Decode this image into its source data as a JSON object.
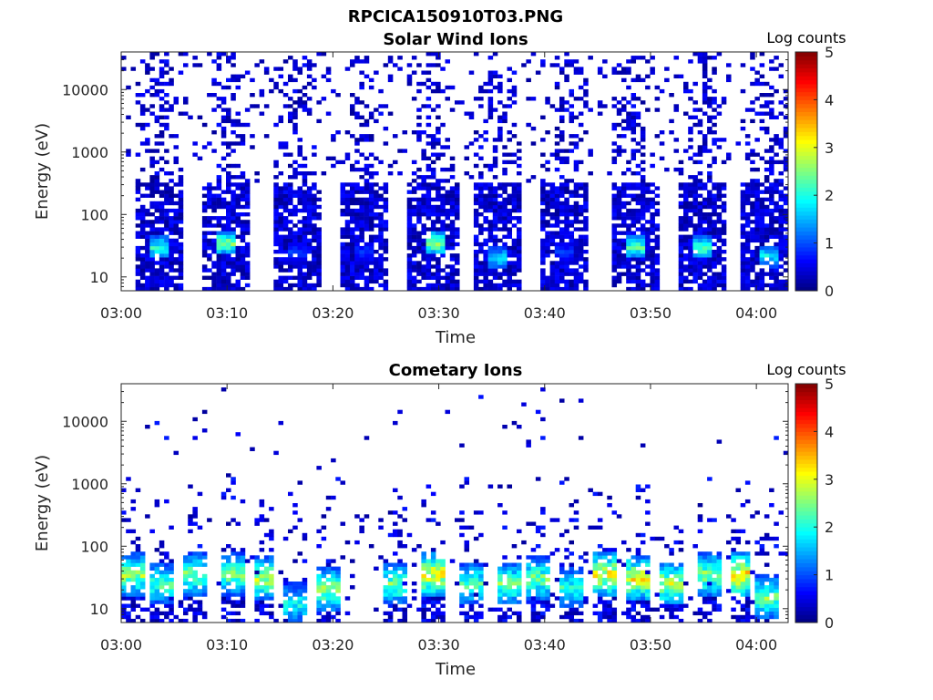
{
  "figure_title": "RPCICA150910T03.PNG",
  "chart_data": [
    {
      "type": "heatmap",
      "title": "Solar Wind Ions",
      "xlabel": "Time",
      "ylabel": "Energy (eV)",
      "x_ticks": [
        "03:00",
        "03:10",
        "03:20",
        "03:30",
        "03:40",
        "03:50",
        "04:00"
      ],
      "xlim": [
        "03:00",
        "04:03"
      ],
      "y_scale": "log",
      "y_ticks": [
        "10",
        "100",
        "1000",
        "10000"
      ],
      "ylim": [
        6,
        40000
      ],
      "colorbar": {
        "label": "Log counts",
        "range": [
          0,
          5
        ],
        "ticks": [
          "0",
          "1",
          "2",
          "3",
          "4",
          "5"
        ]
      },
      "colormap": "jet",
      "bursts": [
        {
          "time": "03:03.5",
          "peak_energy_eV": 30,
          "peak_log_counts": 2.3
        },
        {
          "time": "03:10.0",
          "peak_energy_eV": 35,
          "peak_log_counts": 2.8
        },
        {
          "time": "03:16.5",
          "peak_energy_eV": 25,
          "peak_log_counts": 1.0
        },
        {
          "time": "03:23.0",
          "peak_energy_eV": 25,
          "peak_log_counts": 1.0
        },
        {
          "time": "03:29.5",
          "peak_energy_eV": 35,
          "peak_log_counts": 3.0
        },
        {
          "time": "03:35.5",
          "peak_energy_eV": 20,
          "peak_log_counts": 2.0
        },
        {
          "time": "03:42.0",
          "peak_energy_eV": 25,
          "peak_log_counts": 1.0
        },
        {
          "time": "03:48.5",
          "peak_energy_eV": 30,
          "peak_log_counts": 2.5
        },
        {
          "time": "03:55.0",
          "peak_energy_eV": 30,
          "peak_log_counts": 2.6
        },
        {
          "time": "04:01.0",
          "peak_energy_eV": 22,
          "peak_log_counts": 2.0
        }
      ]
    },
    {
      "type": "heatmap",
      "title": "Cometary Ions",
      "xlabel": "Time",
      "ylabel": "Energy (eV)",
      "x_ticks": [
        "03:00",
        "03:10",
        "03:20",
        "03:30",
        "03:40",
        "03:50",
        "04:00"
      ],
      "xlim": [
        "03:00",
        "04:03"
      ],
      "y_scale": "log",
      "y_ticks": [
        "10",
        "100",
        "1000",
        "10000"
      ],
      "ylim": [
        6,
        40000
      ],
      "colorbar": {
        "label": "Log counts",
        "range": [
          0,
          5
        ],
        "ticks": [
          "0",
          "1",
          "2",
          "3",
          "4",
          "5"
        ]
      },
      "colormap": "jet",
      "bursts": [
        {
          "time": "03:01.0",
          "peak_energy_eV": 35,
          "peak_log_counts": 3.0
        },
        {
          "time": "03:04.0",
          "peak_energy_eV": 25,
          "peak_log_counts": 2.6
        },
        {
          "time": "03:07.0",
          "peak_energy_eV": 35,
          "peak_log_counts": 2.8
        },
        {
          "time": "03:10.5",
          "peak_energy_eV": 35,
          "peak_log_counts": 2.8
        },
        {
          "time": "03:13.5",
          "peak_energy_eV": 30,
          "peak_log_counts": 3.2
        },
        {
          "time": "03:16.5",
          "peak_energy_eV": 12,
          "peak_log_counts": 2.2
        },
        {
          "time": "03:19.5",
          "peak_energy_eV": 20,
          "peak_log_counts": 3.0
        },
        {
          "time": "03:26.0",
          "peak_energy_eV": 25,
          "peak_log_counts": 2.8
        },
        {
          "time": "03:29.5",
          "peak_energy_eV": 35,
          "peak_log_counts": 3.6
        },
        {
          "time": "03:33.0",
          "peak_energy_eV": 25,
          "peak_log_counts": 2.6
        },
        {
          "time": "03:36.5",
          "peak_energy_eV": 25,
          "peak_log_counts": 2.8
        },
        {
          "time": "03:39.5",
          "peak_energy_eV": 30,
          "peak_log_counts": 2.8
        },
        {
          "time": "03:42.5",
          "peak_energy_eV": 22,
          "peak_log_counts": 2.4
        },
        {
          "time": "03:45.5",
          "peak_energy_eV": 35,
          "peak_log_counts": 3.5
        },
        {
          "time": "03:49.0",
          "peak_energy_eV": 30,
          "peak_log_counts": 3.5
        },
        {
          "time": "03:52.0",
          "peak_energy_eV": 25,
          "peak_log_counts": 3.2
        },
        {
          "time": "03:55.5",
          "peak_energy_eV": 35,
          "peak_log_counts": 3.0
        },
        {
          "time": "03:58.5",
          "peak_energy_eV": 35,
          "peak_log_counts": 3.8
        },
        {
          "time": "04:01.0",
          "peak_energy_eV": 15,
          "peak_log_counts": 2.8
        }
      ]
    }
  ]
}
